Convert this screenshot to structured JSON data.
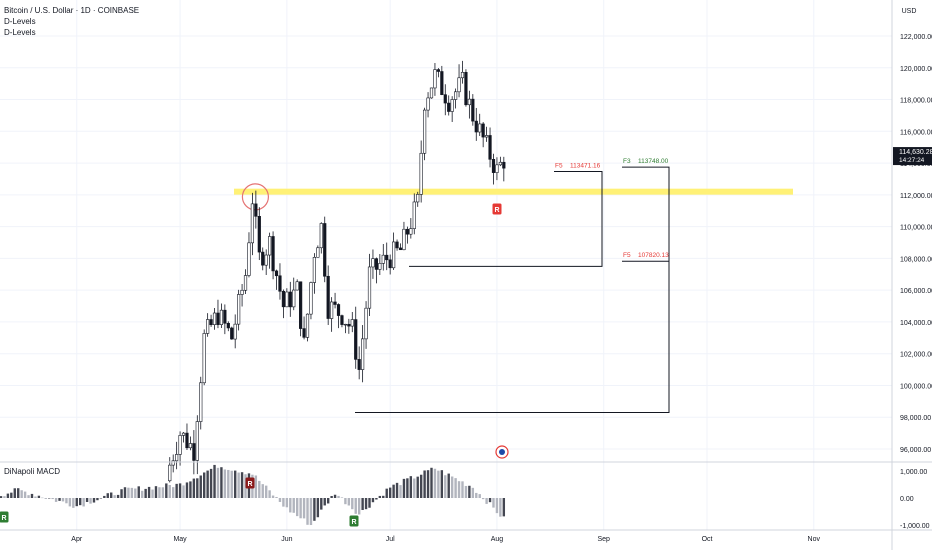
{
  "header": {
    "symbol": "Bitcoin / U.S. Dollar · 1D · COINBASE",
    "indicators": [
      "D-Levels",
      "D-Levels"
    ],
    "currency": "USD"
  },
  "macd_title": "DiNapoli MACD",
  "price_axis": {
    "ticks": [
      "122,000.00",
      "120,000.00",
      "118,000.00",
      "116,000.00",
      "114,000.00",
      "112,000.00",
      "110,000.00",
      "108,000.00",
      "106,000.00",
      "104,000.00",
      "102,000.00",
      "100,000.00",
      "98,000.00",
      "96,000.00"
    ],
    "current_price": "114,630.28",
    "countdown": "14:27:24"
  },
  "macd_axis": {
    "ticks": [
      "1,000.00",
      "0.00",
      "-1,000.00"
    ]
  },
  "time_axis": {
    "ticks": [
      "Apr",
      "May",
      "Jun",
      "Jul",
      "Aug",
      "Sep",
      "Oct",
      "Nov"
    ]
  },
  "levels": [
    {
      "tag": "F5",
      "value": "113471.16",
      "color": "#e53935"
    },
    {
      "tag": "F3",
      "value": "113748.00",
      "color": "#2e7d32"
    },
    {
      "tag": "F5",
      "value": "107820.13",
      "color": "#e53935"
    }
  ],
  "markers": {
    "price_R": "R",
    "macd_R": [
      "R",
      "R",
      "R"
    ]
  },
  "colors": {
    "support_zone": "#fff176",
    "circle": "#e57373",
    "r_marker": "#e53935",
    "g_marker": "#2e7d32",
    "price_tag": "#131722"
  },
  "chart_data": {
    "type": "candlestick",
    "series": [
      {
        "name": "BTC/USD price",
        "ohlc_points": [
          [
            "2025-04-28",
            94000,
            95500,
            93500,
            95000
          ],
          [
            "2025-05-01",
            95000,
            97500,
            94500,
            97000
          ],
          [
            "2025-05-05",
            97000,
            98000,
            95600,
            96000
          ],
          [
            "2025-05-08",
            96000,
            103500,
            96000,
            103000
          ],
          [
            "2025-05-12",
            103000,
            105500,
            102000,
            104500
          ],
          [
            "2025-05-16",
            104500,
            106200,
            102500,
            103000
          ],
          [
            "2025-05-20",
            103000,
            107500,
            102500,
            107000
          ],
          [
            "2025-05-22",
            107000,
            112000,
            106500,
            111800
          ],
          [
            "2025-05-24",
            111800,
            112000,
            107000,
            108000
          ],
          [
            "2025-05-27",
            108000,
            110000,
            106500,
            109000
          ],
          [
            "2025-05-31",
            109000,
            109500,
            103500,
            105000
          ],
          [
            "2025-06-04",
            105000,
            106500,
            103000,
            106000
          ],
          [
            "2025-06-06",
            106000,
            106500,
            100500,
            102500
          ],
          [
            "2025-06-09",
            102500,
            110500,
            102000,
            108500
          ],
          [
            "2025-06-11",
            108500,
            110800,
            107000,
            110000
          ],
          [
            "2025-06-13",
            110000,
            110200,
            104000,
            105000
          ],
          [
            "2025-06-17",
            105000,
            107000,
            102500,
            104500
          ],
          [
            "2025-06-20",
            104500,
            106000,
            103000,
            103500
          ],
          [
            "2025-06-22",
            103500,
            104000,
            99000,
            101000
          ],
          [
            "2025-06-25",
            101000,
            107500,
            100500,
            107000
          ],
          [
            "2025-06-30",
            107000,
            109500,
            106000,
            108000
          ],
          [
            "2025-07-04",
            108000,
            110000,
            107500,
            108500
          ],
          [
            "2025-07-09",
            108500,
            112000,
            108000,
            111500
          ],
          [
            "2025-07-11",
            111500,
            118500,
            111000,
            118000
          ],
          [
            "2025-07-14",
            118000,
            123000,
            116500,
            119500
          ],
          [
            "2025-07-18",
            119500,
            120500,
            117500,
            118000
          ],
          [
            "2025-07-22",
            118000,
            120500,
            116500,
            119000
          ],
          [
            "2025-07-25",
            119000,
            119500,
            114500,
            117000
          ],
          [
            "2025-07-29",
            117000,
            118500,
            114000,
            115000
          ],
          [
            "2025-08-01",
            115000,
            115500,
            112000,
            113500
          ],
          [
            "2025-08-04",
            113500,
            115500,
            112500,
            114630
          ]
        ]
      }
    ],
    "y_range": [
      95000,
      123500
    ],
    "x_range": [
      "2025-03-01",
      "2025-11-15"
    ],
    "annotations": [
      {
        "type": "horizontal_zone",
        "y": 112200,
        "x_start": "2025-05-15",
        "x_end": "2025-11-15"
      },
      {
        "type": "circle",
        "x": "2025-05-22",
        "y": 112000
      },
      {
        "type": "level",
        "label": "F5 113471.16",
        "y": 113471.16,
        "x_start": "2025-08-23",
        "x_end": "2025-09-05"
      },
      {
        "type": "bracket",
        "y_top": 113471.16,
        "y_bottom": 107500,
        "x_start": "2025-07-09",
        "x_end": "2025-09-05"
      },
      {
        "type": "level",
        "label": "F3 113748.00",
        "y": 113748.0,
        "x_start": "2025-09-26",
        "x_end": "2025-10-16"
      },
      {
        "type": "bracket",
        "y_top": 113748.0,
        "y_bottom": 98300,
        "x_start": "2025-06-22",
        "x_end": "2025-10-16"
      },
      {
        "type": "level",
        "label": "F5 107820.13",
        "y": 107820.13,
        "x_start": "2025-09-26",
        "x_end": "2025-10-16"
      }
    ],
    "macd": {
      "range": [
        -1400,
        1400
      ],
      "histogram_points": [
        [
          "2025-03-01",
          -200
        ],
        [
          "2025-03-15",
          300
        ],
        [
          "2025-04-01",
          -300
        ],
        [
          "2025-04-15",
          300
        ],
        [
          "2025-05-01",
          500
        ],
        [
          "2025-05-12",
          1200
        ],
        [
          "2025-05-22",
          900
        ],
        [
          "2025-06-01",
          -400
        ],
        [
          "2025-06-08",
          -1000
        ],
        [
          "2025-06-15",
          200
        ],
        [
          "2025-06-22",
          -600
        ],
        [
          "2025-07-01",
          400
        ],
        [
          "2025-07-14",
          1100
        ],
        [
          "2025-07-25",
          400
        ],
        [
          "2025-08-04",
          -900
        ]
      ]
    }
  }
}
